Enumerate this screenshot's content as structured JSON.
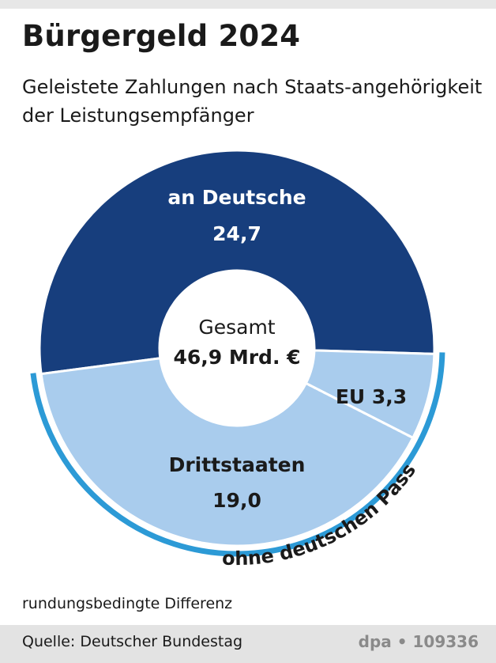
{
  "header": {
    "title": "Bürgergeld 2024",
    "subtitle": "Geleistete Zahlungen nach Staats-angehörigkeit der Leistungsempfänger"
  },
  "chart_data": {
    "type": "pie",
    "style": "donut",
    "unit": "Mrd. €",
    "center": {
      "label": "Gesamt",
      "value": "46,9 Mrd. €"
    },
    "slices": [
      {
        "name": "an Deutsche",
        "value": 24.7,
        "label": "24,7",
        "color": "#173e7d"
      },
      {
        "name": "EU",
        "value": 3.3,
        "label": "3,3",
        "color": "#a9cced"
      },
      {
        "name": "Drittstaaten",
        "value": 19.0,
        "label": "19,0",
        "color": "#a9cced"
      }
    ],
    "group": {
      "label": "ohne deutschen Pass",
      "members": [
        "EU",
        "Drittstaaten"
      ],
      "color": "#2c9ad6"
    }
  },
  "footnote": "rundungsbedingte Differenz",
  "footer": {
    "source": "Quelle: Deutscher Bundestag",
    "credit": "dpa • 109336"
  }
}
